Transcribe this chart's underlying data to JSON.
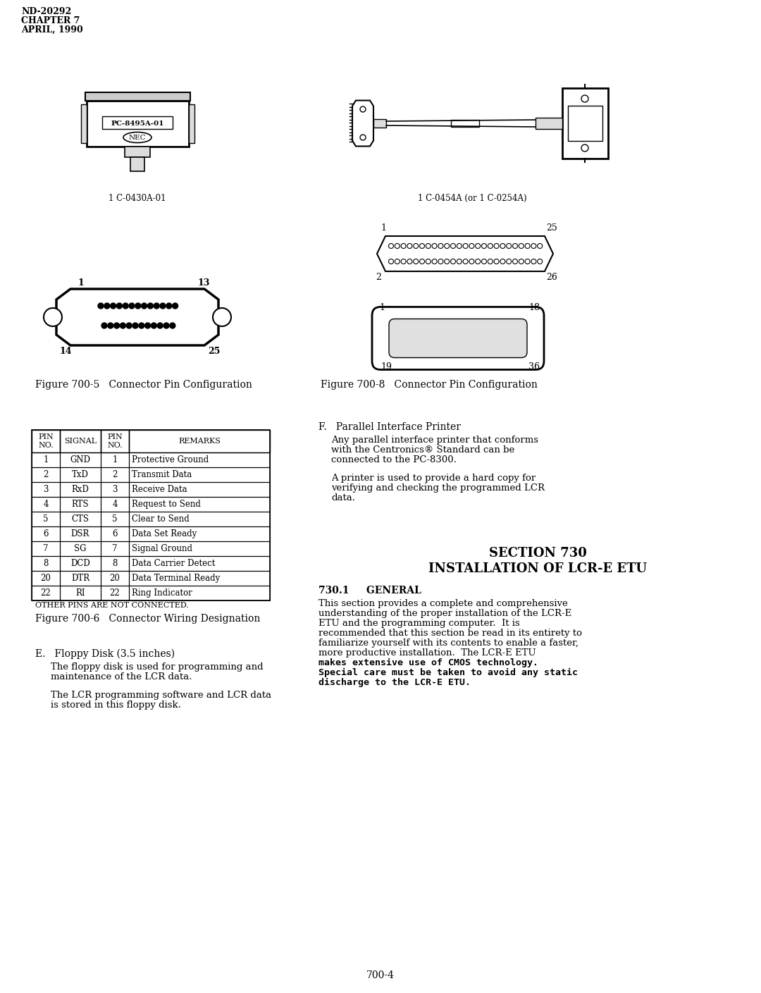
{
  "header_line1": "ND-20292",
  "header_line2": "CHAPTER 7",
  "header_line3": "APRIL, 1990",
  "fig700_5_caption": "Figure 700-5   Connector Pin Configuration",
  "fig700_6_caption": "Figure 700-6   Connector Wiring Designation",
  "fig700_8_caption": "Figure 700-8   Connector Pin Configuration",
  "cable_label_left": "1 C-0430A-01",
  "cable_label_right": "1 C-0454A (or 1 C-0254A)",
  "table_headers": [
    "PIN\nNO.",
    "SIGNAL",
    "PIN\nNO.",
    "REMARKS"
  ],
  "table_data": [
    [
      "1",
      "GND",
      "1",
      "Protective Ground"
    ],
    [
      "2",
      "TxD",
      "2",
      "Transmit Data"
    ],
    [
      "3",
      "RxD",
      "3",
      "Receive Data"
    ],
    [
      "4",
      "RTS",
      "4",
      "Request to Send"
    ],
    [
      "5",
      "CTS",
      "5",
      "Clear to Send"
    ],
    [
      "6",
      "DSR",
      "6",
      "Data Set Ready"
    ],
    [
      "7",
      "SG",
      "7",
      "Signal Ground"
    ],
    [
      "8",
      "DCD",
      "8",
      "Data Carrier Detect"
    ],
    [
      "20",
      "DTR",
      "20",
      "Data Terminal Ready"
    ],
    [
      "22",
      "RI",
      "22",
      "Ring Indicator"
    ]
  ],
  "table_note": "OTHER PINS ARE NOT CONNECTED.",
  "section_title1": "SECTION 730",
  "section_title2": "INSTALLATION OF LCR-E ETU",
  "subsec_title": "730.1     GENERAL",
  "para_f_title": "F.   Parallel Interface Printer",
  "para_f_text1": "Any parallel interface printer that conforms\nwith the Centronics® Standard can be\nconnected to the PC-8300.",
  "para_f_text2": "A printer is used to provide a hard copy for\nverifying and checking the programmed LCR\ndata.",
  "para_e_title": "E.   Floppy Disk (3.5 inches)",
  "para_e_text1": "The floppy disk is used for programming and\nmaintenance of the LCR data.",
  "para_e_text2": "The LCR programming software and LCR data\nis stored in this floppy disk.",
  "para_730_text1": "This section provides a complete and comprehensive\nunderstanding of the proper installation of the LCR-E\nETU and the programming computer.  It is\nrecommended that this section be read in its entirety to\nfamiliarize yourself with its contents to enable a faster,\nmore productive installation.  The LCR-E ETU\nmakes extensive use of CMOS technology.\nSpecial care must be taken to avoid any static\ndischarge to the LCR-E ETU.",
  "page_number": "700-4",
  "bg_color": "#ffffff"
}
